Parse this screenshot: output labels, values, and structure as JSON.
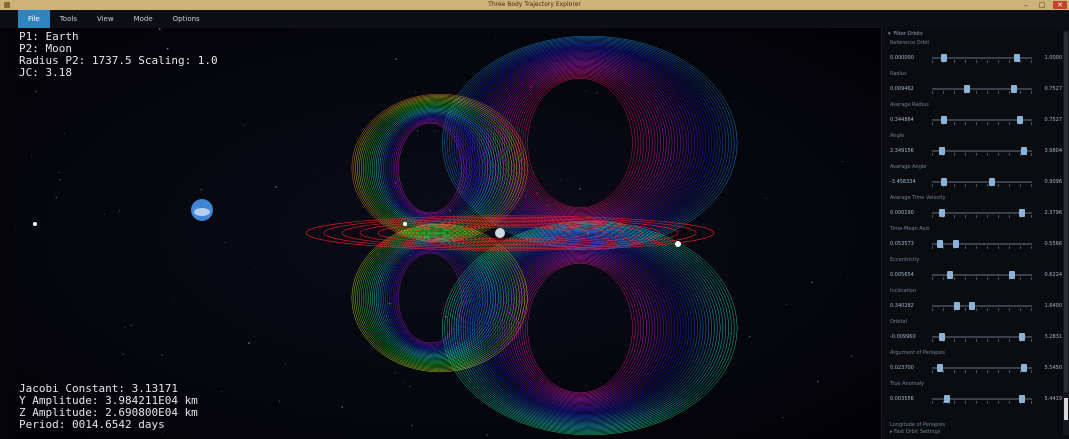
{
  "window": {
    "title": "Three Body Trajectory Explorer"
  },
  "menu": {
    "items": [
      "File",
      "Tools",
      "View",
      "Mode",
      "Options"
    ],
    "active_index": 0
  },
  "hud_top": {
    "p1": "P1: Earth",
    "p2": "P2: Moon",
    "radius": "Radius P2: 1737.5 Scaling: 1.0",
    "jc": "JC: 3.18"
  },
  "hud_bottom": {
    "jacobi": "Jacobi Constant: 3.13171",
    "y_amp": "Y Amplitude: 3.984211E04 km",
    "z_amp": "Z Amplitude: 2.690800E04 km",
    "period": "Period: 0014.6542 days"
  },
  "panel": {
    "header": "Filter Orbits",
    "params": [
      {
        "label": "Reference Orbit",
        "min": "0.000000",
        "max": "1.0000",
        "thumbs": [
          0.12,
          0.85
        ]
      },
      {
        "label": "Radius",
        "min": "0.009462",
        "max": "0.7527",
        "thumbs": [
          0.35,
          0.82
        ]
      },
      {
        "label": "Average Radius",
        "min": "0.344864",
        "max": "0.7527",
        "thumbs": [
          0.12,
          0.88
        ]
      },
      {
        "label": "Angle",
        "min": "2.349156",
        "max": "3.9804",
        "thumbs": [
          0.1,
          0.92
        ]
      },
      {
        "label": "Average Angle",
        "min": "-3.458334",
        "max": "0.9096",
        "thumbs": [
          0.12,
          0.6
        ]
      },
      {
        "label": "Average Time Velocity",
        "min": "0.000190",
        "max": "2.3796",
        "thumbs": [
          0.1,
          0.9
        ]
      },
      {
        "label": "Time-Mean Axis",
        "min": "0.053573",
        "max": "0.5566",
        "thumbs": [
          0.08,
          0.24
        ]
      },
      {
        "label": "Eccentricity",
        "min": "0.005654",
        "max": "0.6224",
        "thumbs": [
          0.18,
          0.8
        ]
      },
      {
        "label": "Inclination",
        "min": "0.340282",
        "max": "1.6400",
        "thumbs": [
          0.25,
          0.4
        ]
      },
      {
        "label": "Orbital",
        "min": "-0.009960",
        "max": "3.2831",
        "thumbs": [
          0.1,
          0.9
        ]
      },
      {
        "label": "Argument of Periapsis",
        "min": "0.023700",
        "max": "5.5450",
        "thumbs": [
          0.08,
          0.92
        ]
      },
      {
        "label": "True Anomaly",
        "min": "0.003556",
        "max": "5.4419",
        "thumbs": [
          0.15,
          0.9
        ]
      }
    ],
    "footer1": "Longitude of Periapsis",
    "footer2": "Fast Orbit Settings"
  },
  "colors": {
    "accent": "#2e86c1",
    "earth": "#4a8fd8",
    "moon": "#cfd6e0"
  }
}
